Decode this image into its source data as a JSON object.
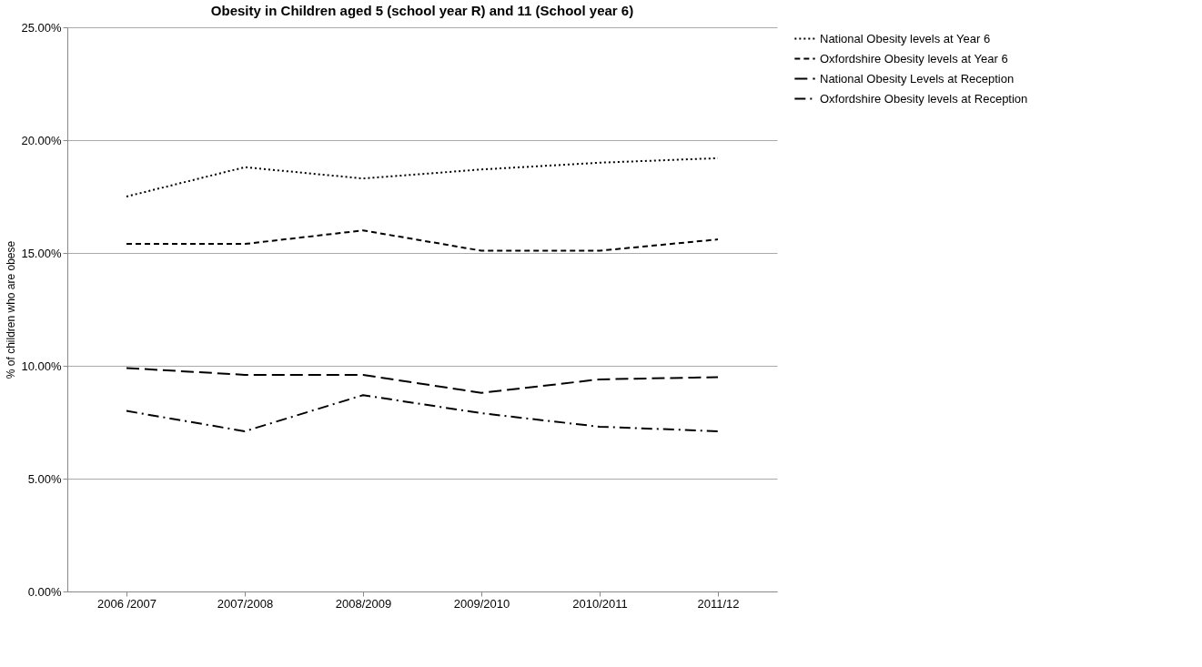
{
  "chart_data": {
    "type": "line",
    "title": "Obesity in Children aged 5 (school year R) and 11 (School year 6)",
    "ylabel": "% of children who are obese",
    "categories": [
      "2006 /2007",
      "2007/2008",
      "2008/2009",
      "2009/2010",
      "2010/2011",
      "2011/12"
    ],
    "series": [
      {
        "name": "National Obesity levels at Year 6",
        "color": "#000000",
        "line_style": "dotted",
        "values": [
          17.5,
          18.8,
          18.3,
          18.7,
          19.0,
          19.2
        ]
      },
      {
        "name": "Oxfordshire Obesity levels at Year 6",
        "color": "#000000",
        "line_style": "dashed",
        "values": [
          15.4,
          15.4,
          16.0,
          15.1,
          15.1,
          15.6
        ]
      },
      {
        "name": "National Obesity Levels at Reception",
        "color": "#000000",
        "line_style": "longdash",
        "values": [
          9.9,
          9.6,
          9.6,
          8.8,
          9.4,
          9.5
        ]
      },
      {
        "name": "Oxfordshire Obesity levels at Reception",
        "color": "#000000",
        "line_style": "dashdot",
        "values": [
          8.0,
          7.1,
          8.7,
          7.9,
          7.3,
          7.1
        ]
      }
    ],
    "ylim": [
      0,
      25
    ],
    "yticks": [
      {
        "value": 0,
        "label": "0.00%"
      },
      {
        "value": 5,
        "label": "5.00%"
      },
      {
        "value": 10,
        "label": "10.00%"
      },
      {
        "value": 15,
        "label": "15.00%"
      },
      {
        "value": 20,
        "label": "20.00%"
      },
      {
        "value": 25,
        "label": "25.00%"
      }
    ],
    "grid": "y",
    "legend": "right",
    "marker": "none"
  }
}
